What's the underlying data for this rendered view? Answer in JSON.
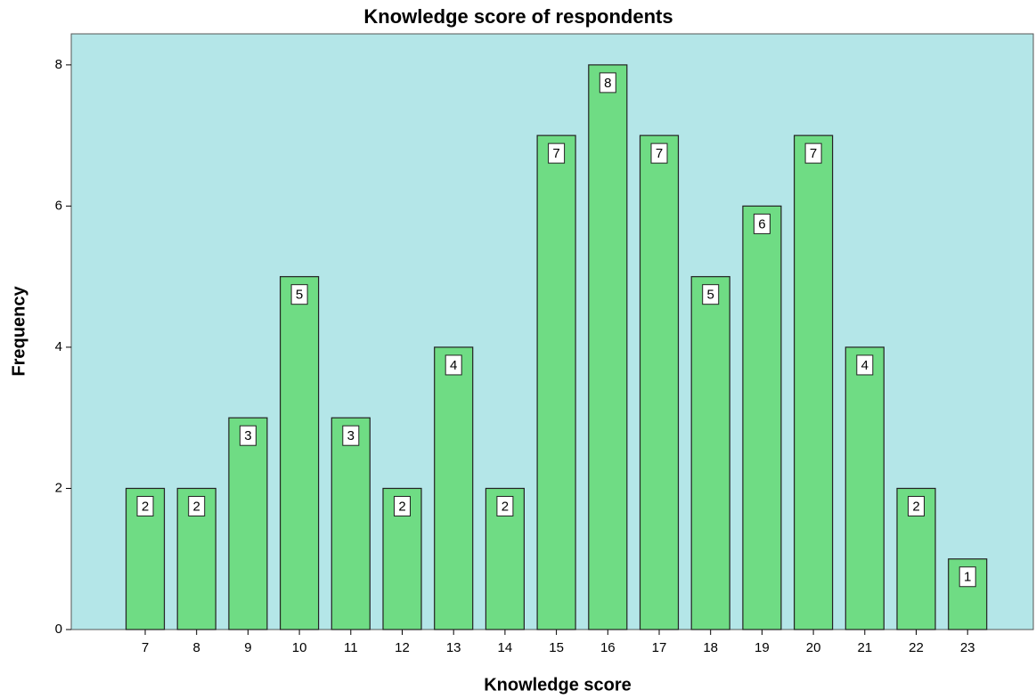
{
  "chart_data": {
    "type": "bar",
    "title": "Knowledge score of respondents",
    "x_label": "Knowledge score",
    "y_label": "Frequency",
    "categories": [
      "7",
      "8",
      "9",
      "10",
      "11",
      "12",
      "13",
      "14",
      "15",
      "16",
      "17",
      "18",
      "19",
      "20",
      "21",
      "22",
      "23"
    ],
    "values": [
      2,
      2,
      3,
      5,
      3,
      2,
      4,
      2,
      7,
      8,
      7,
      5,
      6,
      7,
      4,
      2,
      1
    ],
    "color": "#6fdc84",
    "background": "#b4e6e8",
    "ylim": [
      0,
      8.44
    ],
    "yticks": [
      0,
      2,
      4,
      6,
      8
    ],
    "grid": false
  }
}
